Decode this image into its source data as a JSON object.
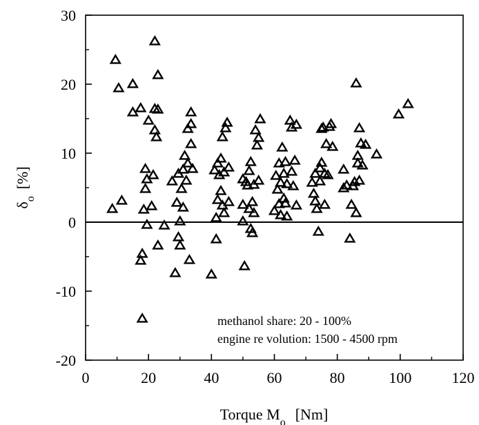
{
  "chart_data": {
    "type": "scatter",
    "xlabel": "Torque M",
    "xlabel_sub": "o",
    "xlabel_unit": "[Nm]",
    "ylabel": "δ",
    "ylabel_sub": "o",
    "ylabel_unit": "[%]",
    "xlim": [
      0,
      120
    ],
    "ylim": [
      -20,
      30
    ],
    "xticks": [
      0,
      20,
      40,
      60,
      80,
      100,
      120
    ],
    "yticks": [
      -20,
      -10,
      0,
      10,
      20,
      30
    ],
    "grid": false,
    "zero_line": true,
    "marker": "triangle",
    "annotations": [
      "methanol share:  20 - 100%",
      "engine re volution: 1500 - 4500 rpm"
    ],
    "series": [
      {
        "points": [
          [
            8.5,
            1.9
          ],
          [
            9.5,
            23.5
          ],
          [
            10.5,
            19.4
          ],
          [
            11.5,
            3.1
          ],
          [
            15,
            20
          ],
          [
            15,
            15.9
          ],
          [
            17.5,
            16.5
          ],
          [
            17.5,
            -5.6
          ],
          [
            18,
            -4.6
          ],
          [
            18,
            -14
          ],
          [
            18.5,
            1.8
          ],
          [
            19,
            7.7
          ],
          [
            19,
            4.8
          ],
          [
            19.5,
            6.2
          ],
          [
            19.5,
            -0.4
          ],
          [
            20,
            14.7
          ],
          [
            21,
            2.3
          ],
          [
            21.5,
            6.8
          ],
          [
            22,
            26.2
          ],
          [
            22,
            16.4
          ],
          [
            22,
            13.3
          ],
          [
            22.5,
            12.3
          ],
          [
            23,
            21.3
          ],
          [
            23,
            16.3
          ],
          [
            23,
            -3.4
          ],
          [
            25,
            -0.5
          ],
          [
            27.5,
            5.9
          ],
          [
            28.5,
            -7.4
          ],
          [
            29,
            2.8
          ],
          [
            29.5,
            7.0
          ],
          [
            29.5,
            -2.2
          ],
          [
            30,
            0.1
          ],
          [
            30,
            -3.4
          ],
          [
            30.5,
            4.8
          ],
          [
            31,
            7.6
          ],
          [
            31,
            2.1
          ],
          [
            31.5,
            9.6
          ],
          [
            32,
            6.0
          ],
          [
            32.5,
            8.5
          ],
          [
            32.5,
            13.5
          ],
          [
            33,
            -5.5
          ],
          [
            33.5,
            15.9
          ],
          [
            33.5,
            11.3
          ],
          [
            33.5,
            14.2
          ],
          [
            34,
            7.7
          ],
          [
            40,
            -7.6
          ],
          [
            41,
            7.5
          ],
          [
            41.5,
            0.6
          ],
          [
            41.5,
            -2.5
          ],
          [
            42,
            8.5
          ],
          [
            42,
            3.2
          ],
          [
            42.5,
            6.8
          ],
          [
            43,
            9.2
          ],
          [
            43,
            4.5
          ],
          [
            43.5,
            2.4
          ],
          [
            43.5,
            12.3
          ],
          [
            44,
            7.2
          ],
          [
            44,
            1.3
          ],
          [
            44.5,
            13.6
          ],
          [
            45,
            14.4
          ],
          [
            45.5,
            7.9
          ],
          [
            45.5,
            2.9
          ],
          [
            50,
            6.2
          ],
          [
            50,
            2.5
          ],
          [
            50,
            0.1
          ],
          [
            50.5,
            -6.4
          ],
          [
            51,
            5.8
          ],
          [
            51.5,
            5.3
          ],
          [
            52,
            7.4
          ],
          [
            52,
            1.9
          ],
          [
            52.5,
            -1.0
          ],
          [
            52.5,
            8.7
          ],
          [
            53,
            -1.6
          ],
          [
            53,
            2.9
          ],
          [
            53.5,
            1.3
          ],
          [
            53.5,
            5.4
          ],
          [
            54,
            13.3
          ],
          [
            54.5,
            11.1
          ],
          [
            55,
            12.2
          ],
          [
            55,
            6.0
          ],
          [
            55.5,
            14.9
          ],
          [
            60,
            1.6
          ],
          [
            60.5,
            6.7
          ],
          [
            61,
            4.7
          ],
          [
            61.5,
            2.6
          ],
          [
            61.5,
            8.5
          ],
          [
            62,
            5.7
          ],
          [
            62,
            1.0
          ],
          [
            62.5,
            10.8
          ],
          [
            63,
            3.4
          ],
          [
            63,
            7.0
          ],
          [
            63.5,
            2.7
          ],
          [
            63.5,
            8.7
          ],
          [
            64,
            0.8
          ],
          [
            64,
            5.5
          ],
          [
            65,
            14.7
          ],
          [
            65.5,
            13.7
          ],
          [
            65.5,
            7.3
          ],
          [
            66,
            5.2
          ],
          [
            66.5,
            8.9
          ],
          [
            67,
            14.1
          ],
          [
            67,
            2.4
          ],
          [
            72,
            5.7
          ],
          [
            72.5,
            4.1
          ],
          [
            73,
            7.0
          ],
          [
            73,
            3.0
          ],
          [
            73.5,
            1.9
          ],
          [
            74,
            -1.4
          ],
          [
            74.5,
            7.8
          ],
          [
            74.5,
            5.9
          ],
          [
            75,
            13.5
          ],
          [
            75,
            8.6
          ],
          [
            75.5,
            13.7
          ],
          [
            76,
            7.0
          ],
          [
            76,
            2.5
          ],
          [
            76.5,
            11.3
          ],
          [
            77,
            6.8
          ],
          [
            77.5,
            13.8
          ],
          [
            78,
            14.2
          ],
          [
            78.5,
            10.9
          ],
          [
            82,
            7.6
          ],
          [
            82,
            4.9
          ],
          [
            83,
            5.3
          ],
          [
            84,
            -2.4
          ],
          [
            84.5,
            2.5
          ],
          [
            85,
            5.2
          ],
          [
            85.5,
            5.8
          ],
          [
            86,
            1.3
          ],
          [
            86,
            20.1
          ],
          [
            86.5,
            9.6
          ],
          [
            86.5,
            8.5
          ],
          [
            87,
            6.0
          ],
          [
            87,
            13.6
          ],
          [
            87.5,
            11.4
          ],
          [
            88,
            8.2
          ],
          [
            89,
            11.2
          ],
          [
            92.5,
            9.8
          ],
          [
            99.5,
            15.6
          ],
          [
            102.5,
            17.1
          ]
        ]
      }
    ]
  }
}
